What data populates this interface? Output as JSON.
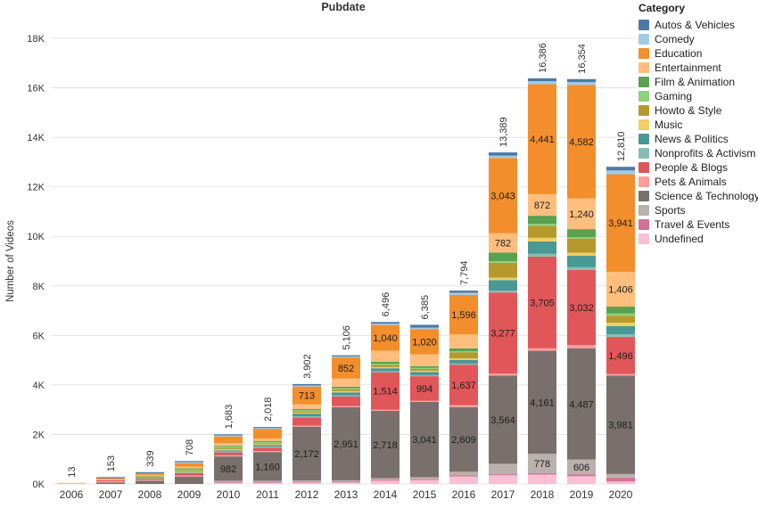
{
  "legend": {
    "title": "Category"
  },
  "chart_data": {
    "type": "bar",
    "stacked": true,
    "title": "Pubdate",
    "xlabel": "",
    "ylabel": "Number of Videos",
    "ylim": [
      0,
      18000
    ],
    "y_tick_step": 2000,
    "y_tick_labels": [
      "0K",
      "2K",
      "4K",
      "6K",
      "8K",
      "10K",
      "12K",
      "14K",
      "16K",
      "18K"
    ],
    "grid": true,
    "legend_position": "right",
    "legend_categories": [
      "Autos & Vehicles",
      "Comedy",
      "Education",
      "Entertainment",
      "Film & Animation",
      "Gaming",
      "Howto & Style",
      "Music",
      "News & Politics",
      "Nonprofits & Activism",
      "People & Blogs",
      "Pets & Animals",
      "Science & Technology",
      "Sports",
      "Travel & Events",
      "Undefined"
    ],
    "stack_order_bottom_to_top": [
      "Undefined",
      "Travel & Events",
      "Sports",
      "Science & Technology",
      "Pets & Animals",
      "People & Blogs",
      "Nonprofits & Activism",
      "News & Politics",
      "Music",
      "Howto & Style",
      "Gaming",
      "Film & Animation",
      "Entertainment",
      "Education",
      "Comedy",
      "Autos & Vehicles"
    ],
    "colors": {
      "Autos & Vehicles": "#4e79a7",
      "Comedy": "#a0cbe8",
      "Education": "#f28e2b",
      "Entertainment": "#ffbe7d",
      "Film & Animation": "#59a14f",
      "Gaming": "#8cd17d",
      "Howto & Style": "#b6992d",
      "Music": "#f1ce63",
      "News & Politics": "#499894",
      "Nonprofits & Activism": "#86bcb6",
      "People & Blogs": "#e15759",
      "Pets & Animals": "#ff9d9a",
      "Science & Technology": "#79706e",
      "Sports": "#bab0ac",
      "Travel & Events": "#d37295",
      "Undefined": "#fabfd2"
    },
    "bars": [
      {
        "year": "2006",
        "total": 13,
        "total_label": "13",
        "labeled": [],
        "values": {
          "Entertainment": 13
        }
      },
      {
        "year": "2007",
        "total": 153,
        "total_label": "153",
        "labeled": [],
        "values": {
          "Science & Technology": 60,
          "Pets & Animals": 8,
          "People & Blogs": 20,
          "Entertainment": 40,
          "Education": 15,
          "Autos & Vehicles": 10
        }
      },
      {
        "year": "2008",
        "total": 339,
        "total_label": "339",
        "labeled": [],
        "values": {
          "Science & Technology": 130,
          "Pets & Animals": 10,
          "People & Blogs": 35,
          "Film & Animation": 14,
          "Gaming": 10,
          "Entertainment": 60,
          "Education": 70,
          "Autos & Vehicles": 10
        }
      },
      {
        "year": "2009",
        "total": 708,
        "total_label": "708",
        "labeled": [],
        "values": {
          "Science & Technology": 300,
          "Pets & Animals": 12,
          "People & Blogs": 70,
          "News & Politics": 20,
          "Music": 14,
          "Howto & Style": 12,
          "Gaming": 14,
          "Film & Animation": 26,
          "Entertainment": 70,
          "Education": 140,
          "Comedy": 10,
          "Autos & Vehicles": 20
        }
      },
      {
        "year": "2010",
        "total": 1683,
        "total_label": "1,683",
        "labeled": [
          "Science & Technology"
        ],
        "values": {
          "Undefined": 15,
          "Travel & Events": 5,
          "Sports": 10,
          "Science & Technology": 982,
          "Pets & Animals": 15,
          "People & Blogs": 120,
          "Nonprofits & Activism": 8,
          "News & Politics": 35,
          "Music": 15,
          "Howto & Style": 25,
          "Gaming": 8,
          "Film & Animation": 30,
          "Entertainment": 115,
          "Education": 270,
          "Comedy": 10,
          "Autos & Vehicles": 20
        }
      },
      {
        "year": "2011",
        "total": 2018,
        "total_label": "2,018",
        "labeled": [
          "Science & Technology"
        ],
        "values": {
          "Undefined": 20,
          "Travel & Events": 8,
          "Sports": 12,
          "Science & Technology": 1160,
          "Pets & Animals": 18,
          "People & Blogs": 130,
          "Nonprofits & Activism": 10,
          "News & Politics": 60,
          "Music": 15,
          "Howto & Style": 25,
          "Gaming": 10,
          "Film & Animation": 35,
          "Entertainment": 95,
          "Education": 380,
          "Comedy": 20,
          "Autos & Vehicles": 20
        }
      },
      {
        "year": "2012",
        "total": 3902,
        "total_label": "3,902",
        "labeled": [
          "Science & Technology",
          "Education"
        ],
        "values": {
          "Undefined": 55,
          "Travel & Events": 12,
          "Sports": 25,
          "Science & Technology": 2172,
          "Pets & Animals": 30,
          "People & Blogs": 330,
          "Nonprofits & Activism": 18,
          "News & Politics": 110,
          "Music": 35,
          "Howto & Style": 55,
          "Gaming": 18,
          "Film & Animation": 50,
          "Entertainment": 190,
          "Education": 713,
          "Comedy": 30,
          "Autos & Vehicles": 59
        }
      },
      {
        "year": "2013",
        "total": 5106,
        "total_label": "5,106",
        "labeled": [
          "Science & Technology",
          "Education"
        ],
        "values": {
          "Undefined": 60,
          "Travel & Events": 12,
          "Sports": 40,
          "Science & Technology": 2951,
          "Pets & Animals": 35,
          "People & Blogs": 390,
          "Nonprofits & Activism": 20,
          "News & Politics": 125,
          "Music": 50,
          "Howto & Style": 75,
          "Gaming": 20,
          "Film & Animation": 60,
          "Entertainment": 330,
          "Education": 852,
          "Comedy": 40,
          "Autos & Vehicles": 46
        }
      },
      {
        "year": "2014",
        "total": 6496,
        "total_label": "6,496",
        "labeled": [
          "Science & Technology",
          "People & Blogs",
          "Education"
        ],
        "values": {
          "Undefined": 130,
          "Travel & Events": 25,
          "Sports": 60,
          "Science & Technology": 2718,
          "Pets & Animals": 45,
          "People & Blogs": 1514,
          "Nonprofits & Activism": 30,
          "News & Politics": 120,
          "Music": 45,
          "Howto & Style": 90,
          "Gaming": 30,
          "Film & Animation": 80,
          "Entertainment": 450,
          "Education": 1040,
          "Comedy": 50,
          "Autos & Vehicles": 69
        }
      },
      {
        "year": "2015",
        "total": 6385,
        "total_label": "6,385",
        "labeled": [
          "Science & Technology",
          "People & Blogs",
          "Education"
        ],
        "values": {
          "Undefined": 160,
          "Travel & Events": 25,
          "Sports": 70,
          "Science & Technology": 3041,
          "Pets & Animals": 40,
          "People & Blogs": 994,
          "Nonprofits & Activism": 40,
          "News & Politics": 130,
          "Music": 50,
          "Howto & Style": 70,
          "Gaming": 25,
          "Film & Animation": 70,
          "Entertainment": 480,
          "Education": 1020,
          "Comedy": 60,
          "Autos & Vehicles": 110
        }
      },
      {
        "year": "2016",
        "total": 7794,
        "total_label": "7,794",
        "labeled": [
          "Science & Technology",
          "People & Blogs",
          "Education"
        ],
        "values": {
          "Undefined": 300,
          "Travel & Events": 35,
          "Sports": 150,
          "Science & Technology": 2609,
          "Pets & Animals": 80,
          "People & Blogs": 1637,
          "Nonprofits & Activism": 35,
          "News & Politics": 150,
          "Music": 60,
          "Howto & Style": 240,
          "Gaming": 45,
          "Film & Animation": 120,
          "Entertainment": 560,
          "Education": 1596,
          "Comedy": 90,
          "Autos & Vehicles": 87
        }
      },
      {
        "year": "2017",
        "total": 13389,
        "total_label": "13,389",
        "labeled": [
          "Science & Technology",
          "People & Blogs",
          "Entertainment",
          "Education"
        ],
        "values": {
          "Undefined": 350,
          "Travel & Events": 40,
          "Sports": 420,
          "Science & Technology": 3564,
          "Pets & Animals": 80,
          "People & Blogs": 3277,
          "Nonprofits & Activism": 70,
          "News & Politics": 430,
          "Music": 100,
          "Howto & Style": 600,
          "Gaming": 60,
          "Film & Animation": 350,
          "Entertainment": 782,
          "Education": 3043,
          "Comedy": 90,
          "Autos & Vehicles": 133
        }
      },
      {
        "year": "2018",
        "total": 16386,
        "total_label": "16,386",
        "labeled": [
          "Sports",
          "Science & Technology",
          "People & Blogs",
          "Entertainment",
          "Education"
        ],
        "values": {
          "Undefined": 380,
          "Travel & Events": 60,
          "Sports": 778,
          "Science & Technology": 4161,
          "Pets & Animals": 100,
          "People & Blogs": 3705,
          "Nonprofits & Activism": 110,
          "News & Politics": 500,
          "Music": 149,
          "Howto & Style": 480,
          "Gaming": 80,
          "Film & Animation": 330,
          "Entertainment": 872,
          "Education": 4441,
          "Comedy": 120,
          "Autos & Vehicles": 120
        }
      },
      {
        "year": "2019",
        "total": 16354,
        "total_label": "16,354",
        "labeled": [
          "Sports",
          "Science & Technology",
          "People & Blogs",
          "Entertainment",
          "Education"
        ],
        "values": {
          "Undefined": 310,
          "Travel & Events": 70,
          "Sports": 606,
          "Science & Technology": 4487,
          "Pets & Animals": 140,
          "People & Blogs": 3032,
          "Nonprofits & Activism": 120,
          "News & Politics": 450,
          "Music": 127,
          "Howto & Style": 570,
          "Gaming": 60,
          "Film & Animation": 320,
          "Entertainment": 1240,
          "Education": 4582,
          "Comedy": 120,
          "Autos & Vehicles": 120
        }
      },
      {
        "year": "2020",
        "total": 12810,
        "total_label": "12,810",
        "labeled": [
          "Science & Technology",
          "People & Blogs",
          "Entertainment",
          "Education"
        ],
        "values": {
          "Undefined": 100,
          "Travel & Events": 160,
          "Sports": 140,
          "Science & Technology": 3981,
          "Pets & Animals": 60,
          "People & Blogs": 1496,
          "Nonprofits & Activism": 110,
          "News & Politics": 330,
          "Music": 140,
          "Howto & Style": 280,
          "Gaming": 86,
          "Film & Animation": 280,
          "Entertainment": 1406,
          "Education": 3941,
          "Comedy": 150,
          "Autos & Vehicles": 150
        }
      }
    ]
  }
}
